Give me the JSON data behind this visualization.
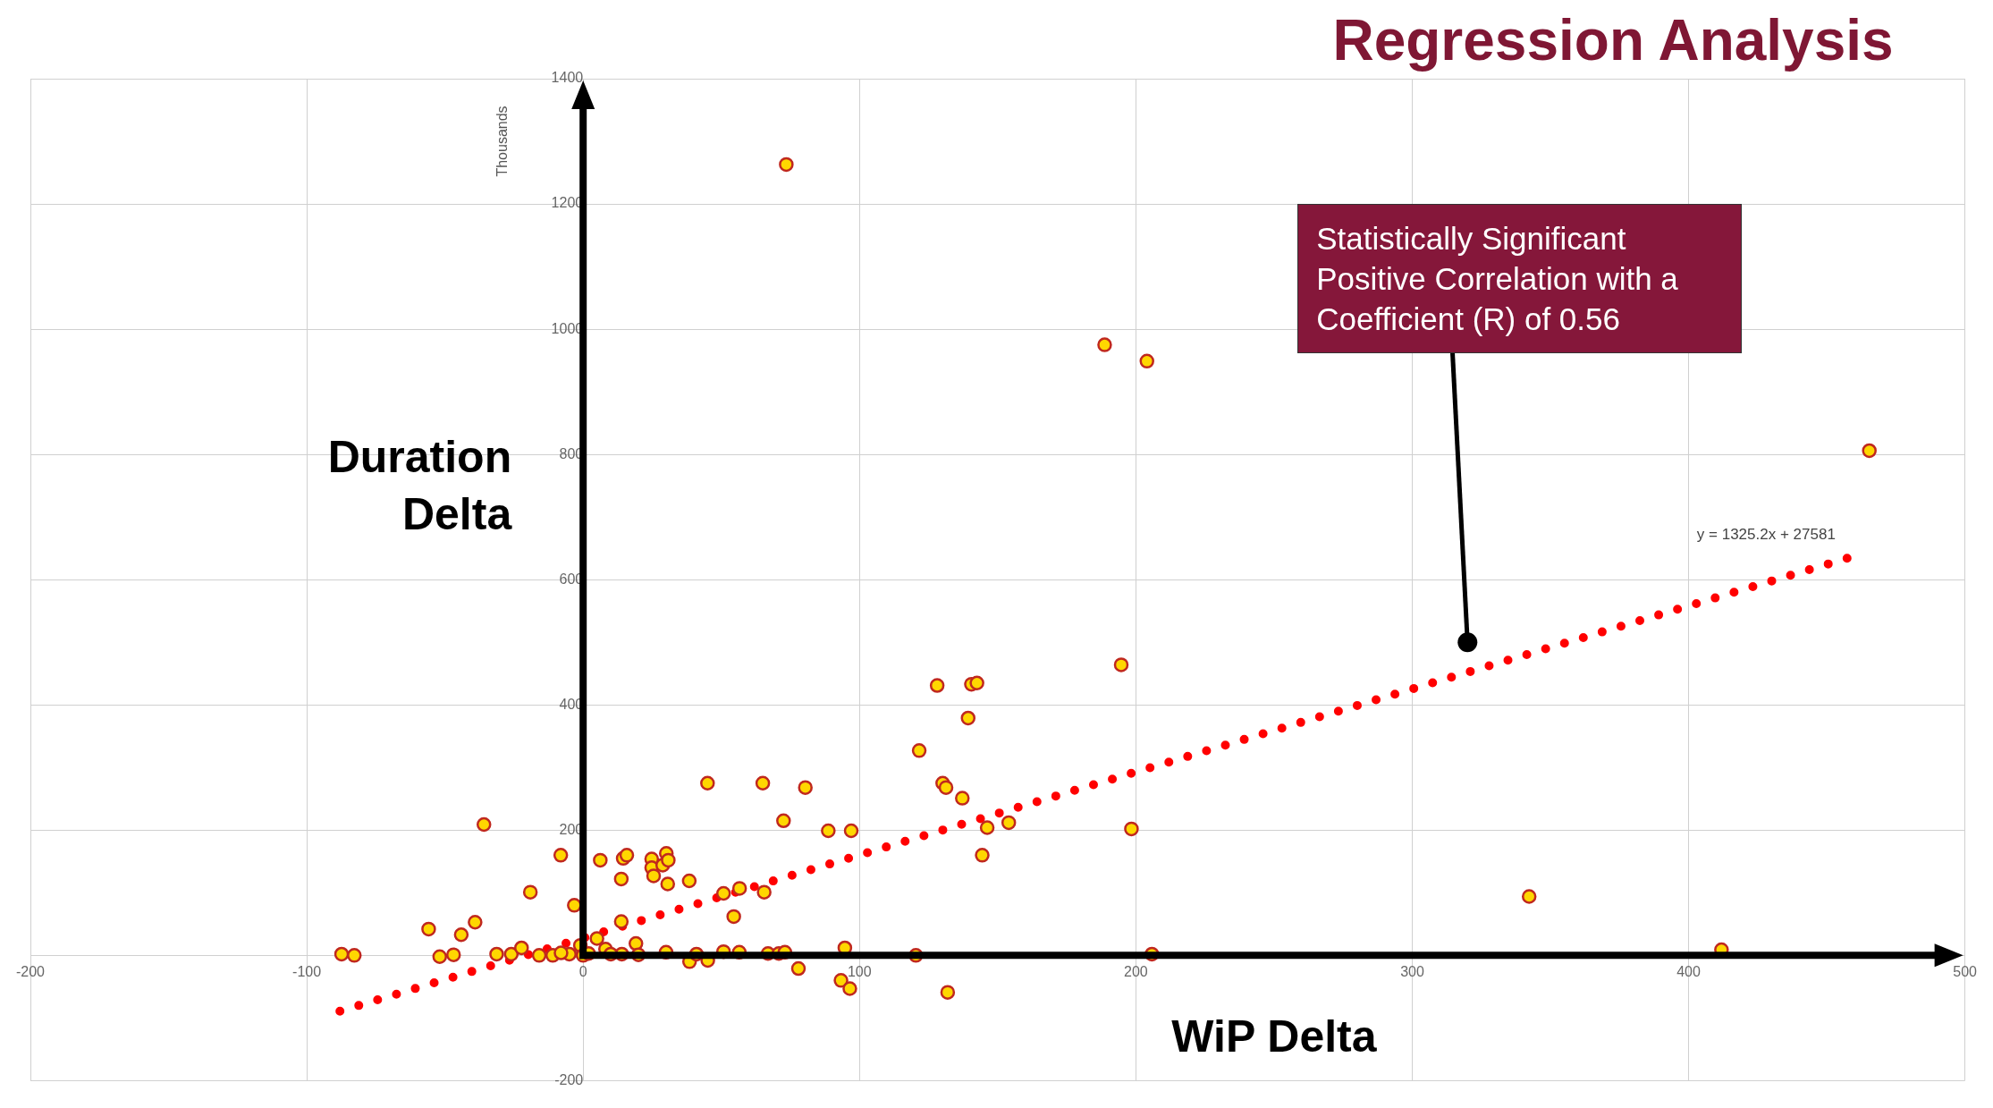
{
  "chart_data": {
    "type": "scatter",
    "title": "Regression Analysis",
    "xlabel": "WiP Delta",
    "ylabel": "Duration Delta",
    "annotations": [
      "Thousands",
      "y = 1325.2x + 27581",
      {
        "text": "Statistically Significant Positive Correlation with a Coefficient (R) of 0.56",
        "x": 320,
        "y": 500
      }
    ],
    "xlim": [
      -200,
      500
    ],
    "xticks": [
      -200,
      -100,
      0,
      100,
      200,
      300,
      400,
      500
    ],
    "ylim": [
      -200,
      1400
    ],
    "yticks": [
      -200,
      0,
      200,
      400,
      600,
      800,
      1000,
      1200,
      1400
    ],
    "grid": true,
    "series": [
      {
        "type": "line",
        "color": "#ff0000",
        "marker": "none",
        "line_style": "dotted",
        "x": [
          -88,
          458
        ],
        "values": [
          -89,
          635
        ]
      },
      {
        "type": "scatter",
        "color": "#ffd700",
        "marker": "circle",
        "x": [
          -87.4,
          -82.8,
          -55.9,
          -51.9,
          -46.9,
          -44.1,
          -39.1,
          -35.9,
          -31.3,
          -26,
          -22.3,
          -19.1,
          -15.9,
          -11,
          -8.1,
          -3.2,
          -1,
          5,
          6.2,
          8.1,
          13.8,
          13.8,
          14.5,
          15.8,
          19.1,
          14,
          24.8,
          24.8,
          25.5,
          28.8,
          30.1,
          30.8,
          30.6,
          30,
          38.4,
          38.5,
          41,
          45,
          45.1,
          50.8,
          50.8,
          54.5,
          56.6,
          56.5,
          65,
          65.5,
          66.9,
          70.8,
          73,
          72.5,
          80.4,
          77.9,
          88.7,
          93.3,
          94.7,
          96.5,
          97,
          120.4,
          121.6,
          128.1,
          130.1,
          131.3,
          131.9,
          137.2,
          139.3,
          140.5,
          142.5,
          144.4,
          146.2,
          154,
          0,
          2,
          10,
          20,
          -5,
          -8,
          73.5,
          188.7,
          204,
          465.4,
          194.7,
          198.4,
          205.8,
          342.3,
          411.9
        ],
        "values": [
          2,
          0,
          42,
          -2,
          1,
          33,
          53,
          209,
          2,
          2,
          12,
          101,
          0,
          0,
          160,
          80,
          16,
          27,
          152,
          10,
          122,
          54,
          155,
          160,
          19,
          2,
          154,
          140,
          127,
          144,
          163,
          152,
          114,
          5,
          119,
          -10,
          2,
          275,
          -8,
          6,
          99,
          62,
          107,
          5,
          275,
          101,
          3,
          3,
          5,
          215,
          268,
          -21,
          199,
          -40,
          12,
          -53,
          199,
          0,
          327,
          431,
          275,
          268,
          -59,
          251,
          379,
          433,
          435,
          160,
          204,
          212,
          0,
          3,
          2,
          1,
          2,
          4,
          1263,
          975,
          949,
          806,
          464,
          202,
          2,
          94,
          9
        ]
      }
    ]
  }
}
